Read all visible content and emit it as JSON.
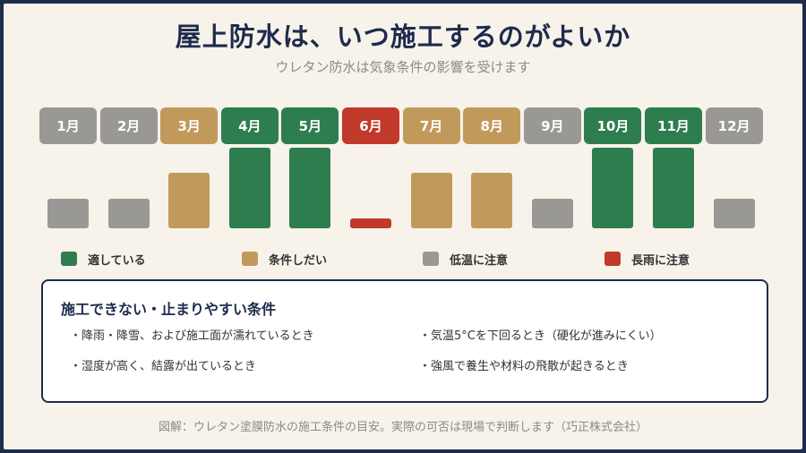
{
  "title": "屋上防水は、いつ施工するのがよいか",
  "subtitle": "ウレタン防水は気象条件の影響を受けます",
  "colors": {
    "good": "#2e7d4f",
    "conditional": "#c19a5b",
    "cold": "#9a9894",
    "rain": "#c0392b",
    "navy": "#1e2b4d"
  },
  "months": [
    {
      "label": "1月",
      "status": "cold",
      "level": 1
    },
    {
      "label": "2月",
      "status": "cold",
      "level": 1
    },
    {
      "label": "3月",
      "status": "conditional",
      "level": 2
    },
    {
      "label": "4月",
      "status": "good",
      "level": 3
    },
    {
      "label": "5月",
      "status": "good",
      "level": 3
    },
    {
      "label": "6月",
      "status": "rain",
      "level": 0
    },
    {
      "label": "7月",
      "status": "conditional",
      "level": 2
    },
    {
      "label": "8月",
      "status": "conditional",
      "level": 2
    },
    {
      "label": "9月",
      "status": "cold",
      "level": 1
    },
    {
      "label": "10月",
      "status": "good",
      "level": 3
    },
    {
      "label": "11月",
      "status": "good",
      "level": 3
    },
    {
      "label": "12月",
      "status": "cold",
      "level": 1
    }
  ],
  "legend": [
    {
      "status": "good",
      "label": "適している"
    },
    {
      "status": "conditional",
      "label": "条件しだい"
    },
    {
      "status": "cold",
      "label": "低温に注意"
    },
    {
      "status": "rain",
      "label": "長雨に注意"
    }
  ],
  "conditions": {
    "title": "施工できない・止まりやすい条件",
    "items": [
      "・降雨・降雪、および施工面が濡れているとき",
      "・気温5°Cを下回るとき（硬化が進みにくい）",
      "・湿度が高く、結露が出ているとき",
      "・強風で養生や材料の飛散が起きるとき"
    ]
  },
  "footer": "図解：ウレタン塗膜防水の施工条件の目安。実際の可否は現場で判断します（巧正株式会社）"
}
